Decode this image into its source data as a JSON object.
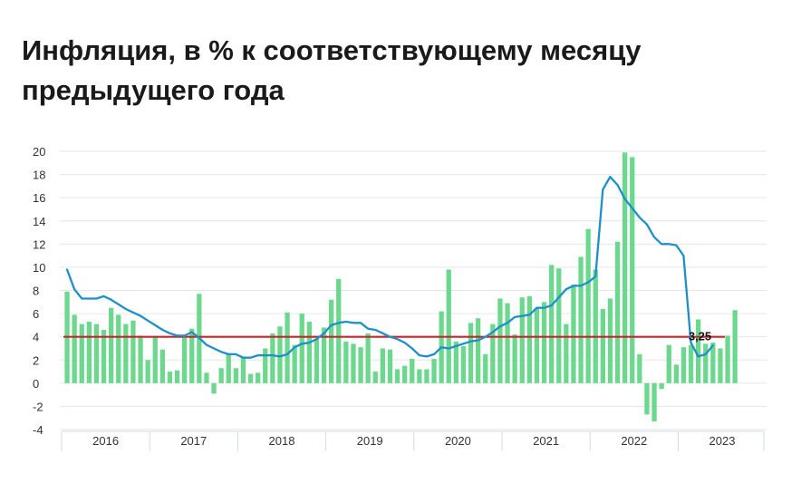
{
  "header": {
    "title": "Инфляция, в % к соответствующему месяцу предыдущего года"
  },
  "colors": {
    "bars": "#6cd88d",
    "line": "#1f8fc9",
    "target": "#c8262e",
    "grid": "#e6e6e6",
    "axis_band": "#d5dbe3"
  },
  "chart_data": {
    "type": "bar",
    "title": "Инфляция, в % к соответствующему месяцу предыдущего года",
    "xlabel": "",
    "ylabel": "",
    "ylim": [
      -4,
      20
    ],
    "yticks": [
      20,
      18,
      16,
      14,
      12,
      10,
      8,
      6,
      4,
      2,
      0,
      -2,
      -4
    ],
    "year_labels": [
      "2016",
      "2017",
      "2018",
      "2019",
      "2020",
      "2021",
      "2022",
      "2023"
    ],
    "grid": true,
    "legend": "none",
    "bars": {
      "values": [
        7.9,
        5.9,
        5.1,
        5.3,
        5.1,
        4.6,
        6.5,
        5.9,
        5.1,
        5.4,
        4.1,
        2.0,
        4.0,
        2.9,
        1.0,
        1.1,
        3.9,
        4.7,
        7.7,
        0.9,
        -0.9,
        1.3,
        2.5,
        1.3,
        2.2,
        0.8,
        0.9,
        3.0,
        4.3,
        4.9,
        6.1,
        3.3,
        6.0,
        5.3,
        3.8,
        4.8,
        7.2,
        9.0,
        3.6,
        3.4,
        3.1,
        4.3,
        1.0,
        3.0,
        2.9,
        1.2,
        1.5,
        2.1,
        1.2,
        1.2,
        2.1,
        6.2,
        9.8,
        3.6,
        3.2,
        5.2,
        5.6,
        2.5,
        5.1,
        7.3,
        6.9,
        4.2,
        7.4,
        7.5,
        6.5,
        7.0,
        10.2,
        9.9,
        5.1,
        8.5,
        10.9,
        13.3,
        9.8,
        6.4,
        7.3,
        12.2,
        19.9,
        19.5,
        2.5,
        -2.7,
        -3.3,
        -0.5,
        3.3,
        1.6,
        3.1,
        3.3,
        5.5,
        3.4,
        3.5,
        3.0,
        4.1,
        6.3
      ]
    },
    "series": [
      {
        "values": [
          9.8,
          8.1,
          7.3,
          7.3,
          7.3,
          7.5,
          7.2,
          6.8,
          6.4,
          6.1,
          5.8,
          5.4,
          5.0,
          4.6,
          4.3,
          4.1,
          4.1,
          4.4,
          3.9,
          3.3,
          3.0,
          2.7,
          2.5,
          2.5,
          2.2,
          2.2,
          2.4,
          2.4,
          2.4,
          2.3,
          2.5,
          3.1,
          3.4,
          3.5,
          3.8,
          4.3,
          5.0,
          5.2,
          5.3,
          5.2,
          5.2,
          4.7,
          4.6,
          4.3,
          4.0,
          3.8,
          3.5,
          3.0,
          2.4,
          2.3,
          2.5,
          3.1,
          3.0,
          3.2,
          3.4,
          3.6,
          3.7,
          4.0,
          4.4,
          4.9,
          5.2,
          5.7,
          5.8,
          5.9,
          6.5,
          6.5,
          6.7,
          7.4,
          8.1,
          8.4,
          8.4,
          8.7,
          9.2,
          16.7,
          17.8,
          17.1,
          15.9,
          15.1,
          14.3,
          13.7,
          12.6,
          12.0,
          12.0,
          11.9,
          11.0,
          3.5,
          2.3,
          2.5,
          3.25
        ]
      }
    ],
    "target_line": 4,
    "annotations": [
      {
        "text": "3,25",
        "value": 3.25
      }
    ]
  }
}
